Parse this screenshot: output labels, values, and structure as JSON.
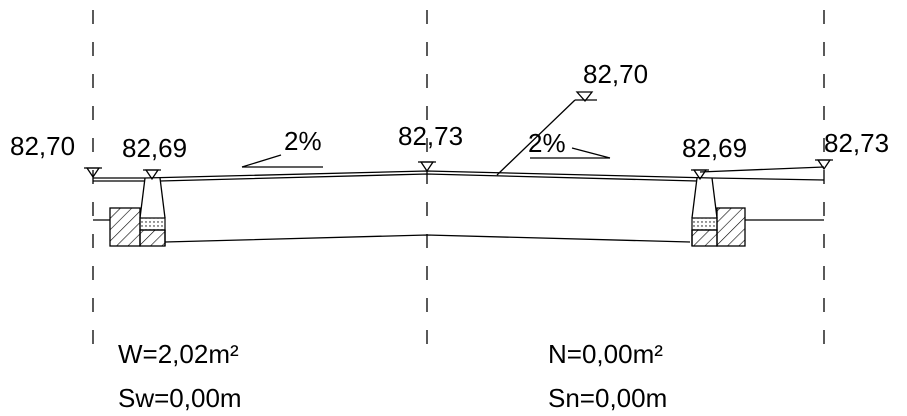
{
  "elevations": {
    "left_edge": "82,70",
    "left_curb": "82,69",
    "center": "82,73",
    "leader": "82,70",
    "right_curb": "82,69",
    "right_edge": "82,73"
  },
  "slopes": {
    "left": "2%",
    "right": "2%"
  },
  "results": {
    "w_area": "W=2,02m²",
    "n_area": "N=0,00m²",
    "sw_width": "Sw=0,00m",
    "sn_width": "Sn=0,00m"
  }
}
